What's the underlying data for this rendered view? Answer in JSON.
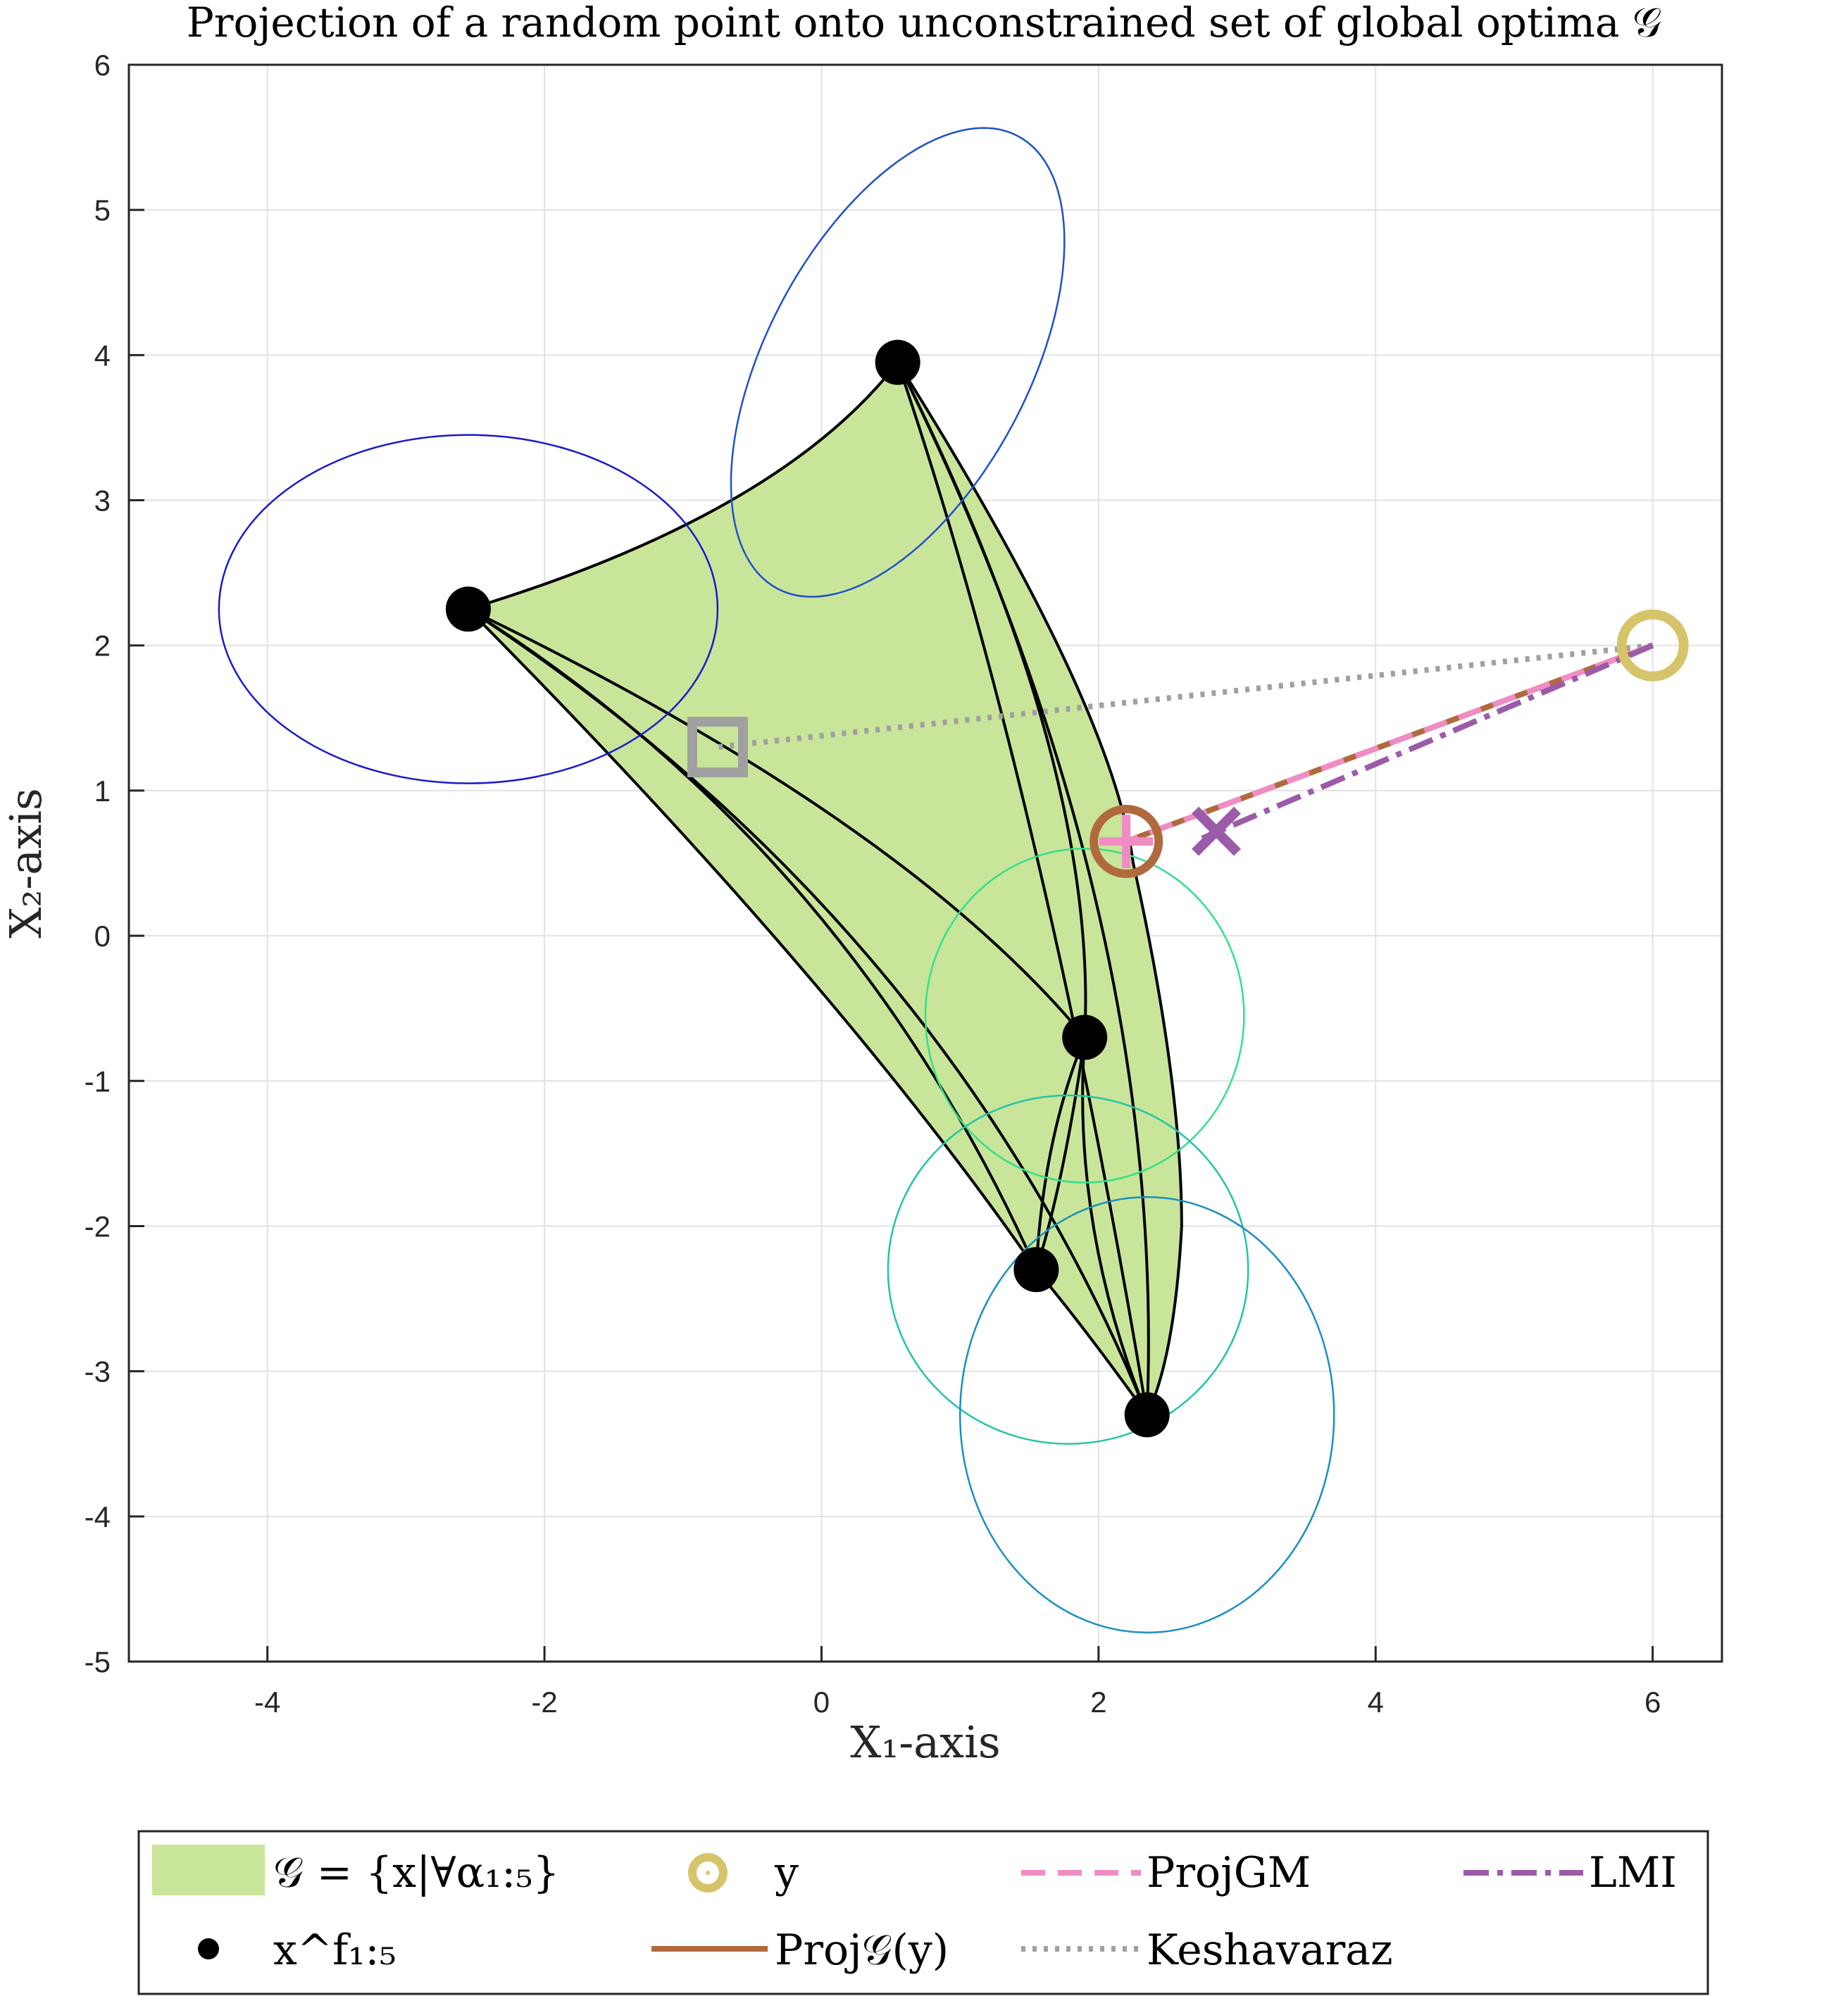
{
  "chart_data": {
    "type": "scatter",
    "title": "Projection of a random point onto unconstrained set of global optima 𝒢",
    "xlabel": "X₁-axis",
    "ylabel": "X₂-axis",
    "xlim": [
      -5,
      6.5
    ],
    "ylim": [
      -5,
      6
    ],
    "xticks": [
      -4,
      -2,
      0,
      2,
      4,
      6
    ],
    "yticks": [
      -5,
      -4,
      -3,
      -2,
      -1,
      0,
      1,
      2,
      3,
      4,
      5,
      6
    ],
    "xtick_labels": [
      "-4",
      "-2",
      "0",
      "2",
      "4",
      "6"
    ],
    "ytick_labels": [
      "-5",
      "-4",
      "-3",
      "-2",
      "-1",
      "0",
      "1",
      "2",
      "3",
      "4",
      "5",
      "6"
    ],
    "grid": true,
    "legend_placement": "bottom-outside",
    "region_color": "#c9e59a",
    "local_optima": [
      {
        "x": -2.55,
        "y": 2.25
      },
      {
        "x": 0.55,
        "y": 3.95
      },
      {
        "x": 1.9,
        "y": -0.7
      },
      {
        "x": 1.55,
        "y": -2.3
      },
      {
        "x": 2.35,
        "y": -3.3
      }
    ],
    "ellipses": [
      {
        "cx": -2.55,
        "cy": 2.25,
        "rx": 1.8,
        "ry": 1.2,
        "angle_deg": 0,
        "color": "#1a1acc"
      },
      {
        "cx": 0.55,
        "cy": 3.95,
        "rx": 1.85,
        "ry": 0.9,
        "angle_deg": 62,
        "color": "#1f4fcc"
      },
      {
        "cx": 1.9,
        "cy": -0.55,
        "rx": 1.15,
        "ry": 1.15,
        "angle_deg": 0,
        "color": "#33e08a"
      },
      {
        "cx": 1.78,
        "cy": -2.3,
        "rx": 1.3,
        "ry": 1.2,
        "angle_deg": 0,
        "color": "#22c4a6"
      },
      {
        "cx": 2.35,
        "cy": -3.3,
        "rx": 1.35,
        "ry": 1.5,
        "angle_deg": 0,
        "color": "#1a8fbf"
      }
    ],
    "y_point": {
      "x": 6.0,
      "y": 2.0,
      "color": "#d6c46a"
    },
    "proj_true": {
      "x": 2.2,
      "y": 0.65,
      "color": "#b06a3e"
    },
    "proj_gm": {
      "x": 2.2,
      "y": 0.65,
      "color": "#f08cc4"
    },
    "lmi": {
      "x": 2.85,
      "y": 0.72,
      "color": "#9b5ba8"
    },
    "keshavarz": {
      "x": -0.75,
      "y": 1.3,
      "color": "#a0a0a0"
    },
    "legend": {
      "region": "𝒢 = {x|∀α₁:₅}",
      "minima": "x^f₁:₅",
      "y": "y",
      "proj": "Proj𝒢(y)",
      "projgm": "ProjGM",
      "keshavaraz": "Keshavaraz",
      "lmi": "LMI"
    }
  }
}
